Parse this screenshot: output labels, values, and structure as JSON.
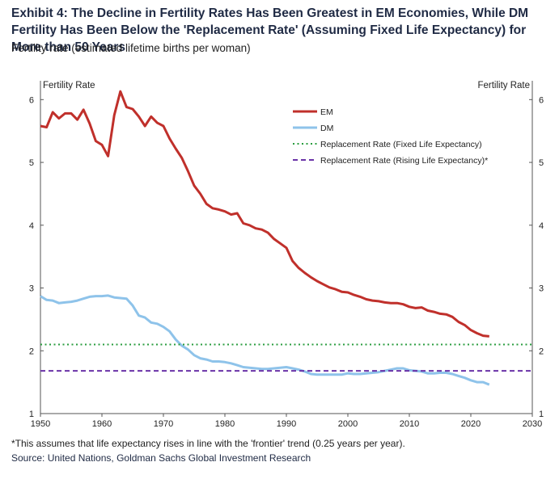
{
  "title": "Exhibit 4: The Decline in Fertility Rates Has Been Greatest in EM Economies, While DM Fertility Has Been Below the 'Replacement Rate' (Assuming Fixed Life Expectancy) for More than 50 Years",
  "subtitle": "Fertility rate (estimated lifetime births per woman)",
  "footnote": "*This assumes that life expectancy rises in line with the 'frontier' trend (0.25 years per year).",
  "source": "Source: United Nations, Goldman Sachs Global Investment Research",
  "chart_data": {
    "type": "line",
    "ylabel_left": "Fertility Rate",
    "ylabel_right": "Fertility Rate",
    "xlim": [
      1950,
      2030
    ],
    "ylim": [
      1,
      6.3
    ],
    "x_ticks": [
      1950,
      1960,
      1970,
      1980,
      1990,
      2000,
      2010,
      2020,
      2030
    ],
    "y_ticks": [
      1,
      2,
      3,
      4,
      5,
      6
    ],
    "legend_position": "top-center",
    "series": [
      {
        "name": "EM",
        "color": "#c0302b",
        "style": "solid",
        "x": [
          1950,
          1951,
          1952,
          1953,
          1954,
          1955,
          1956,
          1957,
          1958,
          1959,
          1960,
          1961,
          1962,
          1963,
          1964,
          1965,
          1966,
          1967,
          1968,
          1969,
          1970,
          1971,
          1972,
          1973,
          1974,
          1975,
          1976,
          1977,
          1978,
          1979,
          1980,
          1981,
          1982,
          1983,
          1984,
          1985,
          1986,
          1987,
          1988,
          1989,
          1990,
          1991,
          1992,
          1993,
          1994,
          1995,
          1996,
          1997,
          1998,
          1999,
          2000,
          2001,
          2002,
          2003,
          2004,
          2005,
          2006,
          2007,
          2008,
          2009,
          2010,
          2011,
          2012,
          2013,
          2014,
          2015,
          2016,
          2017,
          2018,
          2019,
          2020,
          2021,
          2022,
          2023
        ],
        "values": [
          5.58,
          5.56,
          5.8,
          5.7,
          5.78,
          5.78,
          5.68,
          5.84,
          5.62,
          5.34,
          5.28,
          5.1,
          5.75,
          6.13,
          5.88,
          5.85,
          5.73,
          5.58,
          5.73,
          5.63,
          5.58,
          5.38,
          5.22,
          5.07,
          4.86,
          4.63,
          4.5,
          4.34,
          4.27,
          4.25,
          4.22,
          4.17,
          4.19,
          4.03,
          4.0,
          3.95,
          3.93,
          3.88,
          3.78,
          3.71,
          3.64,
          3.43,
          3.32,
          3.24,
          3.17,
          3.11,
          3.06,
          3.01,
          2.98,
          2.94,
          2.93,
          2.89,
          2.86,
          2.82,
          2.8,
          2.79,
          2.77,
          2.76,
          2.76,
          2.74,
          2.7,
          2.68,
          2.69,
          2.64,
          2.62,
          2.59,
          2.58,
          2.54,
          2.46,
          2.41,
          2.33,
          2.28,
          2.24,
          2.23
        ]
      },
      {
        "name": "DM",
        "color": "#8ec3ea",
        "style": "solid",
        "x": [
          1950,
          1951,
          1952,
          1953,
          1954,
          1955,
          1956,
          1957,
          1958,
          1959,
          1960,
          1961,
          1962,
          1963,
          1964,
          1965,
          1966,
          1967,
          1968,
          1969,
          1970,
          1971,
          1972,
          1973,
          1974,
          1975,
          1976,
          1977,
          1978,
          1979,
          1980,
          1981,
          1982,
          1983,
          1984,
          1985,
          1986,
          1987,
          1988,
          1989,
          1990,
          1991,
          1992,
          1993,
          1994,
          1995,
          1996,
          1997,
          1998,
          1999,
          2000,
          2001,
          2002,
          2003,
          2004,
          2005,
          2006,
          2007,
          2008,
          2009,
          2010,
          2011,
          2012,
          2013,
          2014,
          2015,
          2016,
          2017,
          2018,
          2019,
          2020,
          2021,
          2022,
          2023
        ],
        "values": [
          2.87,
          2.81,
          2.8,
          2.76,
          2.77,
          2.78,
          2.8,
          2.83,
          2.86,
          2.87,
          2.87,
          2.88,
          2.85,
          2.84,
          2.83,
          2.72,
          2.56,
          2.53,
          2.45,
          2.43,
          2.38,
          2.31,
          2.18,
          2.08,
          2.02,
          1.93,
          1.88,
          1.86,
          1.83,
          1.83,
          1.82,
          1.8,
          1.77,
          1.74,
          1.73,
          1.72,
          1.71,
          1.71,
          1.72,
          1.73,
          1.74,
          1.72,
          1.7,
          1.67,
          1.63,
          1.62,
          1.62,
          1.62,
          1.62,
          1.62,
          1.64,
          1.63,
          1.63,
          1.64,
          1.65,
          1.66,
          1.68,
          1.7,
          1.72,
          1.72,
          1.69,
          1.68,
          1.67,
          1.64,
          1.64,
          1.65,
          1.65,
          1.63,
          1.6,
          1.57,
          1.53,
          1.5,
          1.5,
          1.46
        ]
      },
      {
        "name": "Replacement Rate (Fixed Life Expectancy)",
        "color": "#2a9d3f",
        "style": "dotted",
        "x": [
          1950,
          2030
        ],
        "values": [
          2.1,
          2.1
        ]
      },
      {
        "name": "Replacement Rate (Rising Life Expectancy)*",
        "color": "#6a33a8",
        "style": "dashed",
        "x": [
          1950,
          2030
        ],
        "values": [
          1.68,
          1.68
        ]
      }
    ]
  }
}
